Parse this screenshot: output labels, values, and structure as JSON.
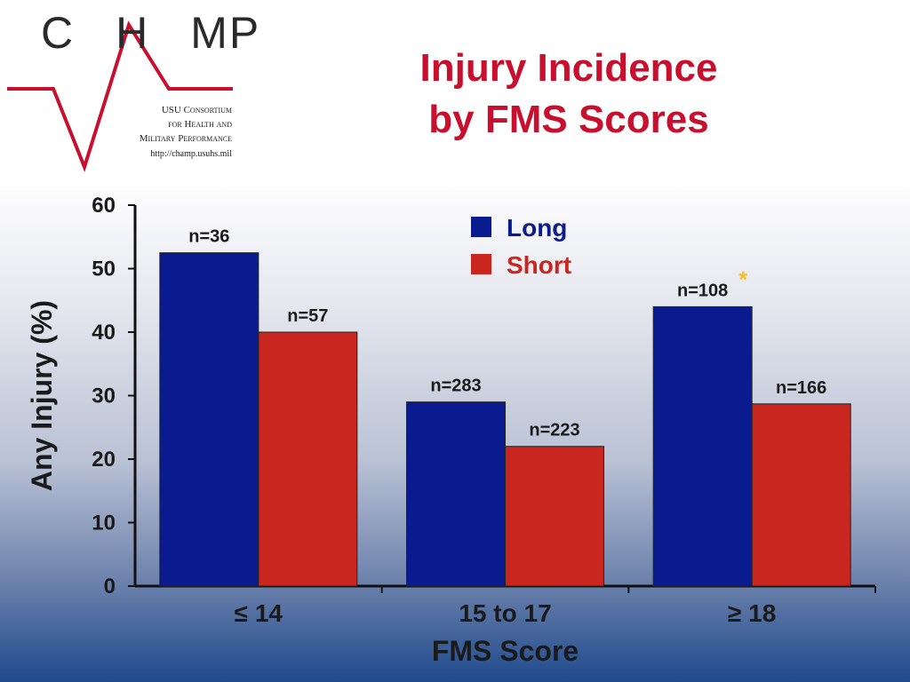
{
  "logo": {
    "wordmark_left": "CH",
    "wordmark_right": "MP",
    "line1": "USU Consortium",
    "line2": "for Health and",
    "line3": "Military Performance",
    "url": "http://champ.usuhs.mil"
  },
  "title_line1": "Injury Incidence",
  "title_line2": "by FMS Scores",
  "colors": {
    "long": "#0a1b8f",
    "short": "#c8261e",
    "title": "#c8102e",
    "star": "#f2c12e",
    "logo_red": "#c8102e"
  },
  "chart_data": {
    "type": "bar",
    "title": "Injury Incidence by FMS Scores",
    "xlabel": "FMS Score",
    "ylabel": "Any Injury (%)",
    "ylim": [
      0,
      60
    ],
    "yticks": [
      0,
      10,
      20,
      30,
      40,
      50,
      60
    ],
    "categories": [
      "≤ 14",
      "15 to 17",
      "≥ 18"
    ],
    "series": [
      {
        "name": "Long",
        "values": [
          52.5,
          29,
          44
        ],
        "labels": [
          "n=36",
          "n=283",
          "n=108"
        ]
      },
      {
        "name": "Short",
        "values": [
          40,
          22,
          28.7
        ],
        "labels": [
          "n=57",
          "n=223",
          "n=166"
        ]
      }
    ],
    "annotations": [
      {
        "text": "*",
        "category": "≥ 18",
        "series": "Long"
      }
    ],
    "legend": "top-center",
    "grid": false
  }
}
